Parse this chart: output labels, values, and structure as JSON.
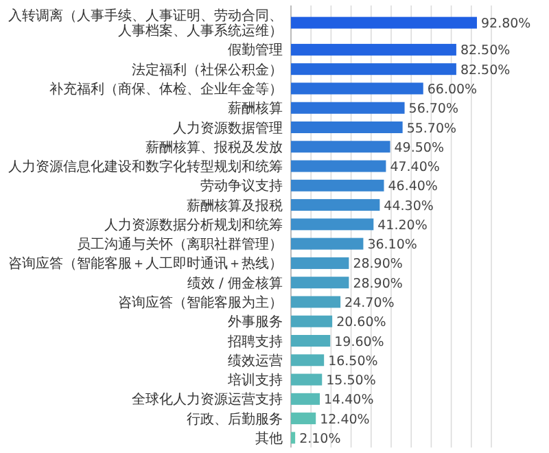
{
  "chart_data": {
    "type": "bar",
    "orientation": "horizontal",
    "grid": "x",
    "categories": [
      "入转调离（人事手续、人事证明、劳动合同、人事档案、人事系统运维）",
      "假勤管理",
      "法定福利（社保公积金）",
      "补充福利（商保、体检、企业年金等）",
      "薪酬核算",
      "人力资源数据管理",
      "薪酬核算、报税及发放",
      "人力资源信息化建设和数字化转型规划和统筹",
      "劳动争议支持",
      "薪酬核算及报税",
      "人力资源数据分析规划和统筹",
      "员工沟通与关怀（离职社群管理）",
      "咨询应答（智能客服＋人工即时通讯＋热线）",
      "绩效 / 佣金核算",
      "咨询应答（智能客服为主）",
      "外事服务",
      "招聘支持",
      "绩效运营",
      "培训支持",
      "全球化人力资源运营支持",
      "行政、后勤服务",
      "其他"
    ],
    "values": [
      92.8,
      82.5,
      82.5,
      66.0,
      56.7,
      55.7,
      49.5,
      47.4,
      46.4,
      44.3,
      41.2,
      36.1,
      28.9,
      28.9,
      24.7,
      20.6,
      19.6,
      16.5,
      15.5,
      14.4,
      12.4,
      2.1
    ],
    "value_labels": [
      "92.80%",
      "82.50%",
      "82.50%",
      "66.00%",
      "56.70%",
      "55.70%",
      "49.50%",
      "47.40%",
      "46.40%",
      "44.30%",
      "41.20%",
      "36.10%",
      "28.90%",
      "28.90%",
      "24.70%",
      "20.60%",
      "19.60%",
      "16.50%",
      "15.50%",
      "14.40%",
      "12.40%",
      "2.10%"
    ],
    "colors": [
      "#1f5fe3",
      "#2264e1",
      "#2569de",
      "#286edc",
      "#2b72da",
      "#2e77d7",
      "#317cd5",
      "#3481d3",
      "#3786d0",
      "#3a8bce",
      "#3d90cc",
      "#4094c9",
      "#4399c7",
      "#469ec5",
      "#49a3c2",
      "#4ca8c0",
      "#4fadbe",
      "#52b2bb",
      "#55b6b9",
      "#58bbb7",
      "#5bc0b4",
      "#5ec5b2"
    ],
    "xlim": [
      0,
      100
    ],
    "xticks": [
      {
        "value": 0,
        "label": null
      },
      {
        "value": 10,
        "label": null
      },
      {
        "value": 20,
        "label": null
      },
      {
        "value": 30,
        "label": null
      },
      {
        "value": 40,
        "label": null
      },
      {
        "value": 50,
        "label": null
      },
      {
        "value": 60,
        "label": null
      },
      {
        "value": 70,
        "label": null
      },
      {
        "value": 80,
        "label": null
      },
      {
        "value": 90,
        "label": null
      },
      {
        "value": 100,
        "label": null
      }
    ],
    "tick_labels": "y"
  }
}
